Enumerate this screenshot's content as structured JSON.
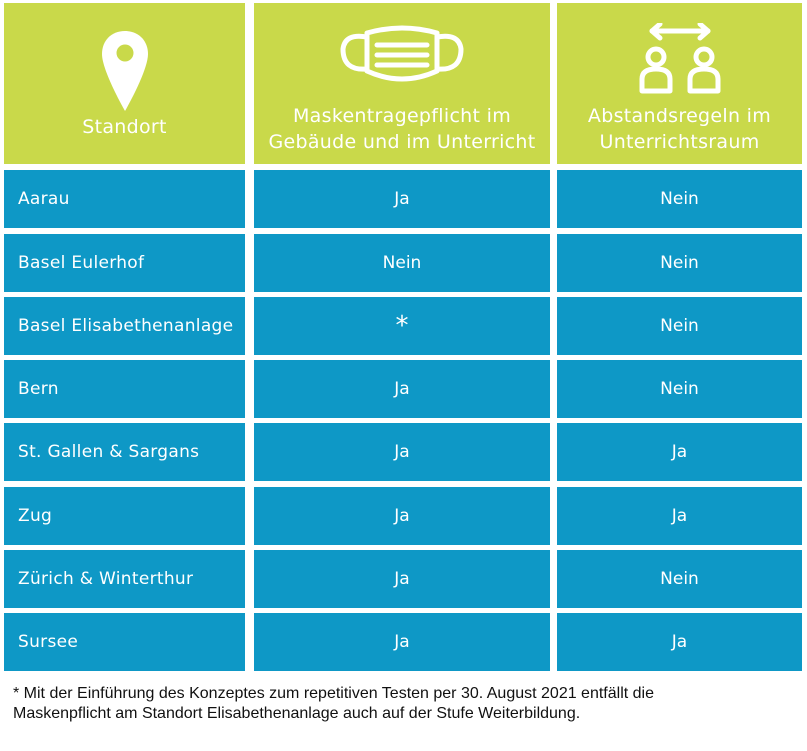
{
  "header": {
    "col1": {
      "label": "Standort",
      "icon": "map-pin-icon"
    },
    "col2": {
      "line1": "Maskentragepflicht im",
      "line2": "Gebäude und im Unterricht",
      "icon": "face-mask-icon"
    },
    "col3": {
      "line1": "Abstandsregeln im",
      "line2": "Unterrichtsraum",
      "icon": "distance-people-icon"
    }
  },
  "colors": {
    "header_bg": "#c9d94a",
    "cell_bg": "#0e98c6",
    "text": "#ffffff"
  },
  "rows": [
    {
      "location": "Aarau",
      "mask": "Ja",
      "distance": "Nein"
    },
    {
      "location": "Basel Eulerhof",
      "mask": "Nein",
      "distance": "Nein"
    },
    {
      "location": "Basel Elisabethenanlage",
      "mask": "*",
      "distance": "Nein"
    },
    {
      "location": "Bern",
      "mask": "Ja",
      "distance": "Nein"
    },
    {
      "location": "St. Gallen & Sargans",
      "mask": "Ja",
      "distance": "Ja"
    },
    {
      "location": "Zug",
      "mask": "Ja",
      "distance": "Ja"
    },
    {
      "location": "Zürich & Winterthur",
      "mask": "Ja",
      "distance": "Nein"
    },
    {
      "location": "Sursee",
      "mask": "Ja",
      "distance": "Ja"
    }
  ],
  "footnote": {
    "line1": "* Mit der Einführung des Konzeptes zum repetitiven Testen per 30. August 2021 entfällt die",
    "line2": "Maskenpflicht am Standort Elisabethenanlage auch auf der Stufe Weiterbildung."
  }
}
